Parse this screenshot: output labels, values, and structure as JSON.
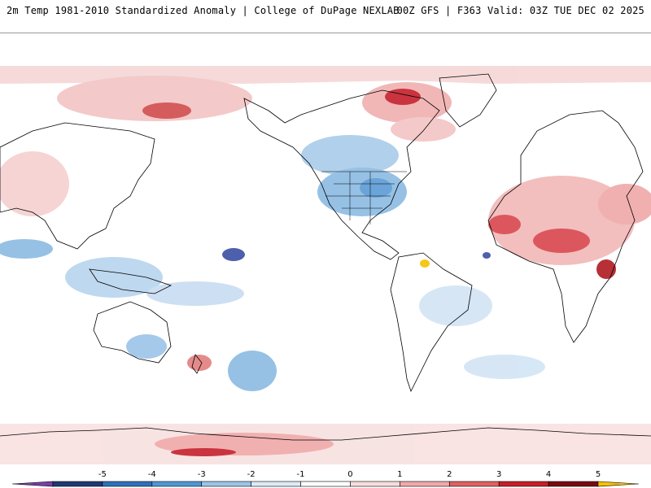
{
  "header": {
    "product": "2m Temp 1981-2010 Standardized Anomaly | College of DuPage NEXLAB",
    "run_info": "00Z GFS | F363 Valid: 03Z TUE DEC 02 2025"
  },
  "map": {
    "projection": "global-equidistant-cylindrical",
    "center": "pacific-180",
    "variable": "2m temperature standardized anomaly"
  },
  "legend": {
    "ticks": [
      "-5",
      "-4",
      "-3",
      "-2",
      "-1",
      "0",
      "1",
      "2",
      "3",
      "4",
      "5"
    ],
    "colors": [
      "#7b3fa8",
      "#1f3873",
      "#2f6fba",
      "#4f97d6",
      "#9cc4e8",
      "#dceaf6",
      "#ffffff",
      "#f8dcdc",
      "#f0a8a8",
      "#e06060",
      "#c81e28",
      "#7a0a12",
      "#f6c200"
    ]
  }
}
